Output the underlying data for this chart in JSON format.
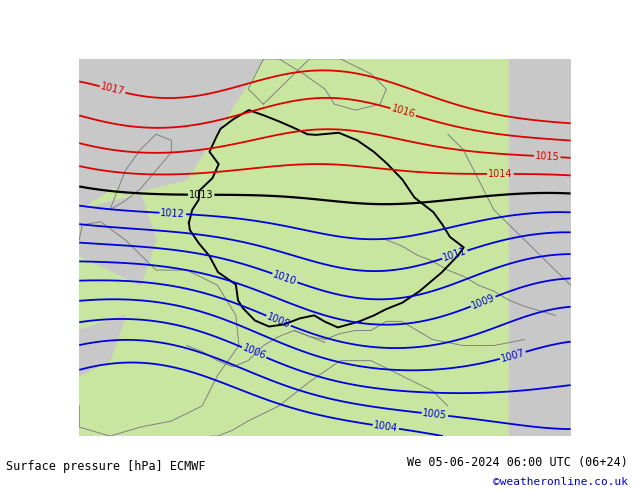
{
  "title_left": "Surface pressure [hPa] ECMWF",
  "title_right": "We 05-06-2024 06:00 UTC (06+24)",
  "credit": "©weatheronline.co.uk",
  "bg_gray": "#c8c8c8",
  "bg_green": "#c8e6a0",
  "contour_blue": "#0000dd",
  "contour_black": "#000000",
  "contour_red": "#dd0000",
  "fig_width": 6.34,
  "fig_height": 4.9,
  "dpi": 100,
  "blue_levels": [
    1004,
    1005,
    1006,
    1007,
    1008,
    1009,
    1010,
    1011,
    1012
  ],
  "black_levels": [
    1013
  ],
  "red_levels": [
    1014,
    1015,
    1016,
    1017
  ],
  "lon_min": 2.5,
  "lon_max": 18.5,
  "lat_min": 44.0,
  "lat_max": 56.5,
  "credit_color": "#0000cc"
}
